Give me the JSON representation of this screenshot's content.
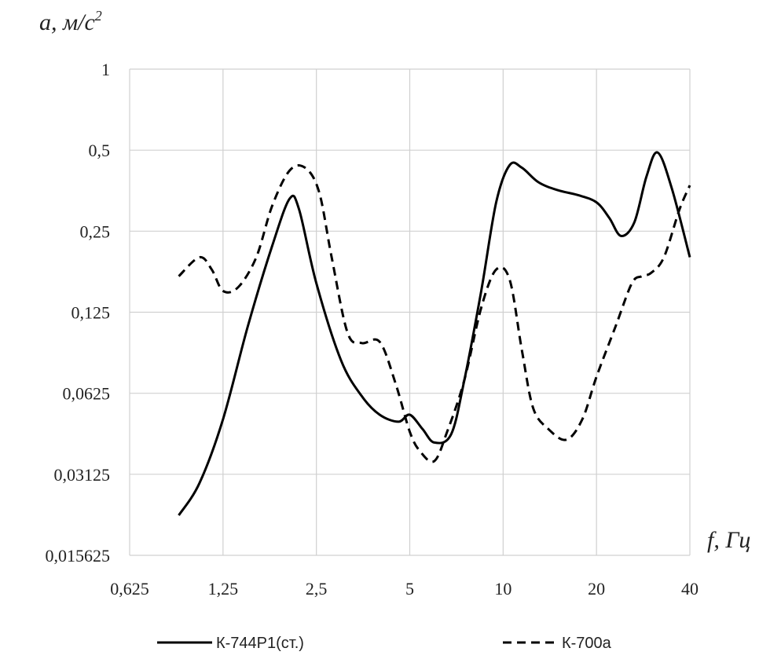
{
  "chart_data": {
    "type": "line",
    "ylabel": "a, м/с",
    "ylabel_sup": "2",
    "xlabel": "f, Гц",
    "x_scale": "log2",
    "y_scale": "log2",
    "xlim": [
      0.625,
      40
    ],
    "ylim": [
      0.015625,
      1
    ],
    "grid": true,
    "legend_position": "bottom",
    "x_ticks": [
      "0,625",
      "1,25",
      "2,5",
      "5",
      "10",
      "20",
      "40"
    ],
    "y_ticks": [
      "0,015625",
      "0,03125",
      "0,0625",
      "0,125",
      "0,25",
      "0,5",
      "1"
    ],
    "series": [
      {
        "name": "К-744Р1(ст.)",
        "style": "solid",
        "x": [
          0.9,
          1.05,
          1.25,
          1.5,
          1.8,
          2.05,
          2.2,
          2.5,
          3.0,
          3.5,
          4.0,
          4.6,
          5.0,
          5.5,
          6.0,
          6.8,
          7.5,
          8.5,
          9.5,
          10.5,
          11.5,
          13.0,
          15.0,
          17.5,
          20.0,
          22.0,
          24.0,
          26.5,
          29.0,
          31.5,
          35.0,
          40.0
        ],
        "y": [
          0.022,
          0.029,
          0.05,
          0.11,
          0.22,
          0.33,
          0.3,
          0.16,
          0.083,
          0.061,
          0.052,
          0.049,
          0.052,
          0.046,
          0.041,
          0.044,
          0.07,
          0.15,
          0.32,
          0.44,
          0.43,
          0.38,
          0.355,
          0.34,
          0.32,
          0.28,
          0.24,
          0.27,
          0.4,
          0.49,
          0.36,
          0.2
        ]
      },
      {
        "name": "К-700а",
        "style": "dashed",
        "x": [
          0.9,
          1.05,
          1.15,
          1.25,
          1.4,
          1.6,
          1.8,
          2.05,
          2.3,
          2.55,
          2.8,
          3.15,
          3.5,
          4.0,
          4.5,
          5.0,
          5.4,
          6.0,
          6.6,
          7.5,
          8.5,
          9.5,
          10.5,
          11.5,
          12.5,
          14.0,
          16.0,
          18.0,
          20.0,
          23.0,
          26.0,
          28.0,
          30.0,
          33.0,
          37.0,
          40.0
        ],
        "y": [
          0.17,
          0.2,
          0.18,
          0.15,
          0.155,
          0.2,
          0.31,
          0.42,
          0.43,
          0.35,
          0.2,
          0.105,
          0.096,
          0.097,
          0.068,
          0.045,
          0.038,
          0.035,
          0.045,
          0.07,
          0.13,
          0.18,
          0.165,
          0.09,
          0.055,
          0.046,
          0.042,
          0.05,
          0.072,
          0.11,
          0.16,
          0.17,
          0.175,
          0.2,
          0.3,
          0.37
        ]
      }
    ]
  }
}
